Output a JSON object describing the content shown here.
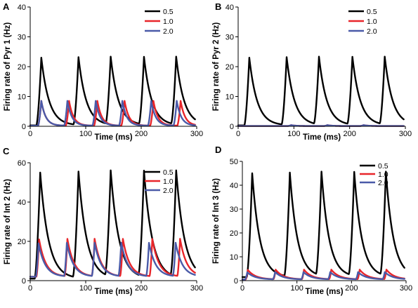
{
  "colors": {
    "0.5": "#000000",
    "1.0": "#e8252a",
    "2.0": "#4a5aa8"
  },
  "chart_data": [
    {
      "panel": "A",
      "type": "line",
      "ylabel": "Firing rate of Pyr 1 (Hz)",
      "xlabel": "Time (ms)",
      "xlim": [
        0,
        300
      ],
      "ylim": [
        0,
        40
      ],
      "xticks": [
        0,
        100,
        200,
        300
      ],
      "yticks": [
        0,
        10,
        20,
        30,
        40
      ],
      "legend_position": "top-right",
      "series": [
        {
          "name": "0.5",
          "color": "#000000",
          "peaks": [
            20,
            87,
            145,
            205,
            263
          ],
          "peak_value": 23,
          "rise_ms": 9,
          "decay_ms": 14,
          "baseline": 0.3
        },
        {
          "name": "1.0",
          "color": "#e8252a",
          "peaks": [
            20,
            70,
            121,
            170,
            222,
            271
          ],
          "peak_value": 8.5,
          "rise_ms": 6,
          "decay_ms": 8,
          "baseline": 0.2
        },
        {
          "name": "2.0",
          "color": "#4a5aa8",
          "peaks": [
            20,
            67,
            118,
            166,
            218,
            264
          ],
          "peak_value": 8.5,
          "rise_ms": 6,
          "decay_ms": 8,
          "baseline": 0.2
        }
      ]
    },
    {
      "panel": "B",
      "type": "line",
      "ylabel": "Firing rate of Pyr 2 (Hz)",
      "xlabel": "Time (ms)",
      "xlim": [
        0,
        300
      ],
      "ylim": [
        0,
        40
      ],
      "xticks": [
        0,
        100,
        200,
        300
      ],
      "yticks": [
        0,
        10,
        20,
        30,
        40
      ],
      "legend_position": "top-right",
      "series": [
        {
          "name": "0.5",
          "color": "#000000",
          "peaks": [
            20,
            87,
            145,
            205,
            263
          ],
          "peak_value": 23,
          "rise_ms": 9,
          "decay_ms": 14,
          "baseline": 0.3
        },
        {
          "name": "1.0",
          "color": "#e8252a",
          "peaks": [
            95,
            160,
            225
          ],
          "peak_value": 0.4,
          "rise_ms": 6,
          "decay_ms": 8,
          "baseline": 0.1
        },
        {
          "name": "2.0",
          "color": "#4a5aa8",
          "peaks": [
            95,
            160,
            225
          ],
          "peak_value": 0.4,
          "rise_ms": 6,
          "decay_ms": 8,
          "baseline": 0.1
        }
      ]
    },
    {
      "panel": "C",
      "type": "line",
      "ylabel": "Firing rate of Int 2 (Hz)",
      "xlabel": "Time (ms)",
      "xlim": [
        0,
        300
      ],
      "ylim": [
        0,
        60
      ],
      "xticks": [
        0,
        100,
        200,
        300
      ],
      "yticks": [
        0,
        20,
        40,
        60
      ],
      "legend_position": "top-right",
      "series": [
        {
          "name": "0.5",
          "color": "#000000",
          "peaks": [
            18,
            87,
            145,
            205,
            263
          ],
          "peak_value": 55,
          "rise_ms": 10,
          "decay_ms": 15,
          "baseline": 1
        },
        {
          "name": "1.0",
          "color": "#e8252a",
          "peaks": [
            16,
            67,
            116,
            167,
            220,
            270
          ],
          "peak_value": 21,
          "rise_ms": 5,
          "decay_ms": 12,
          "baseline": 2
        },
        {
          "name": "2.0",
          "color": "#4a5aa8",
          "peaks": [
            15,
            66,
            116,
            164,
            214,
            262
          ],
          "peak_value": 19,
          "rise_ms": 5,
          "decay_ms": 12,
          "baseline": 2
        }
      ]
    },
    {
      "panel": "D",
      "type": "line",
      "ylabel": "Firing rate of Int 3 (Hz)",
      "xlabel": "Time (ms)",
      "xlim": [
        0,
        300
      ],
      "ylim": [
        0,
        50
      ],
      "xticks": [
        0,
        100,
        200,
        300
      ],
      "yticks": [
        0,
        10,
        20,
        30,
        40,
        50
      ],
      "legend_position": "top-right",
      "series": [
        {
          "name": "0.5",
          "color": "#000000",
          "peaks": [
            18,
            87,
            145,
            205,
            263
          ],
          "peak_value": 45,
          "rise_ms": 10,
          "decay_ms": 14,
          "baseline": 1.5
        },
        {
          "name": "1.0",
          "color": "#e8252a",
          "peaks": [
            10,
            61,
            113,
            163,
            215,
            264
          ],
          "peak_value": 4.5,
          "rise_ms": 4,
          "decay_ms": 14,
          "baseline": 0.5
        },
        {
          "name": "2.0",
          "color": "#4a5aa8",
          "peaks": [
            9,
            60,
            112,
            161,
            212,
            261
          ],
          "peak_value": 3.5,
          "rise_ms": 4,
          "decay_ms": 14,
          "baseline": 0.5
        }
      ]
    }
  ]
}
